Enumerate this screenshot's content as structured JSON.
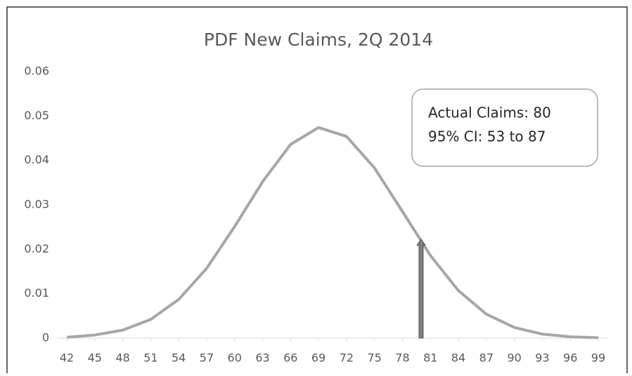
{
  "chart_data": {
    "type": "line",
    "title": "PDF New Claims, 2Q 2014",
    "x": [
      42,
      45,
      48,
      51,
      54,
      57,
      60,
      63,
      66,
      69,
      72,
      75,
      78,
      81,
      84,
      87,
      90,
      93,
      96,
      99
    ],
    "series": [
      {
        "name": "PDF",
        "color": "#a6a6a6",
        "values": [
          0.0002,
          0.0007,
          0.0018,
          0.0042,
          0.0087,
          0.0157,
          0.0251,
          0.0352,
          0.0436,
          0.0474,
          0.0454,
          0.0383,
          0.0285,
          0.0186,
          0.0107,
          0.0054,
          0.0024,
          0.0009,
          0.0003,
          0.0001
        ]
      }
    ],
    "xlim": [
      42,
      99
    ],
    "xticks": [
      42,
      45,
      48,
      51,
      54,
      57,
      60,
      63,
      66,
      69,
      72,
      75,
      78,
      81,
      84,
      87,
      90,
      93,
      96,
      99
    ],
    "ylim": [
      0,
      0.06
    ],
    "yticks": [
      0,
      0.01,
      0.02,
      0.03,
      0.04,
      0.05,
      0.06
    ],
    "grid": false,
    "arrow": {
      "x": 80,
      "y": 0.0223,
      "color": "#7f7f7f"
    },
    "annotations": [
      "Actual Claims: 80",
      "95% CI: 53 to 87"
    ]
  }
}
